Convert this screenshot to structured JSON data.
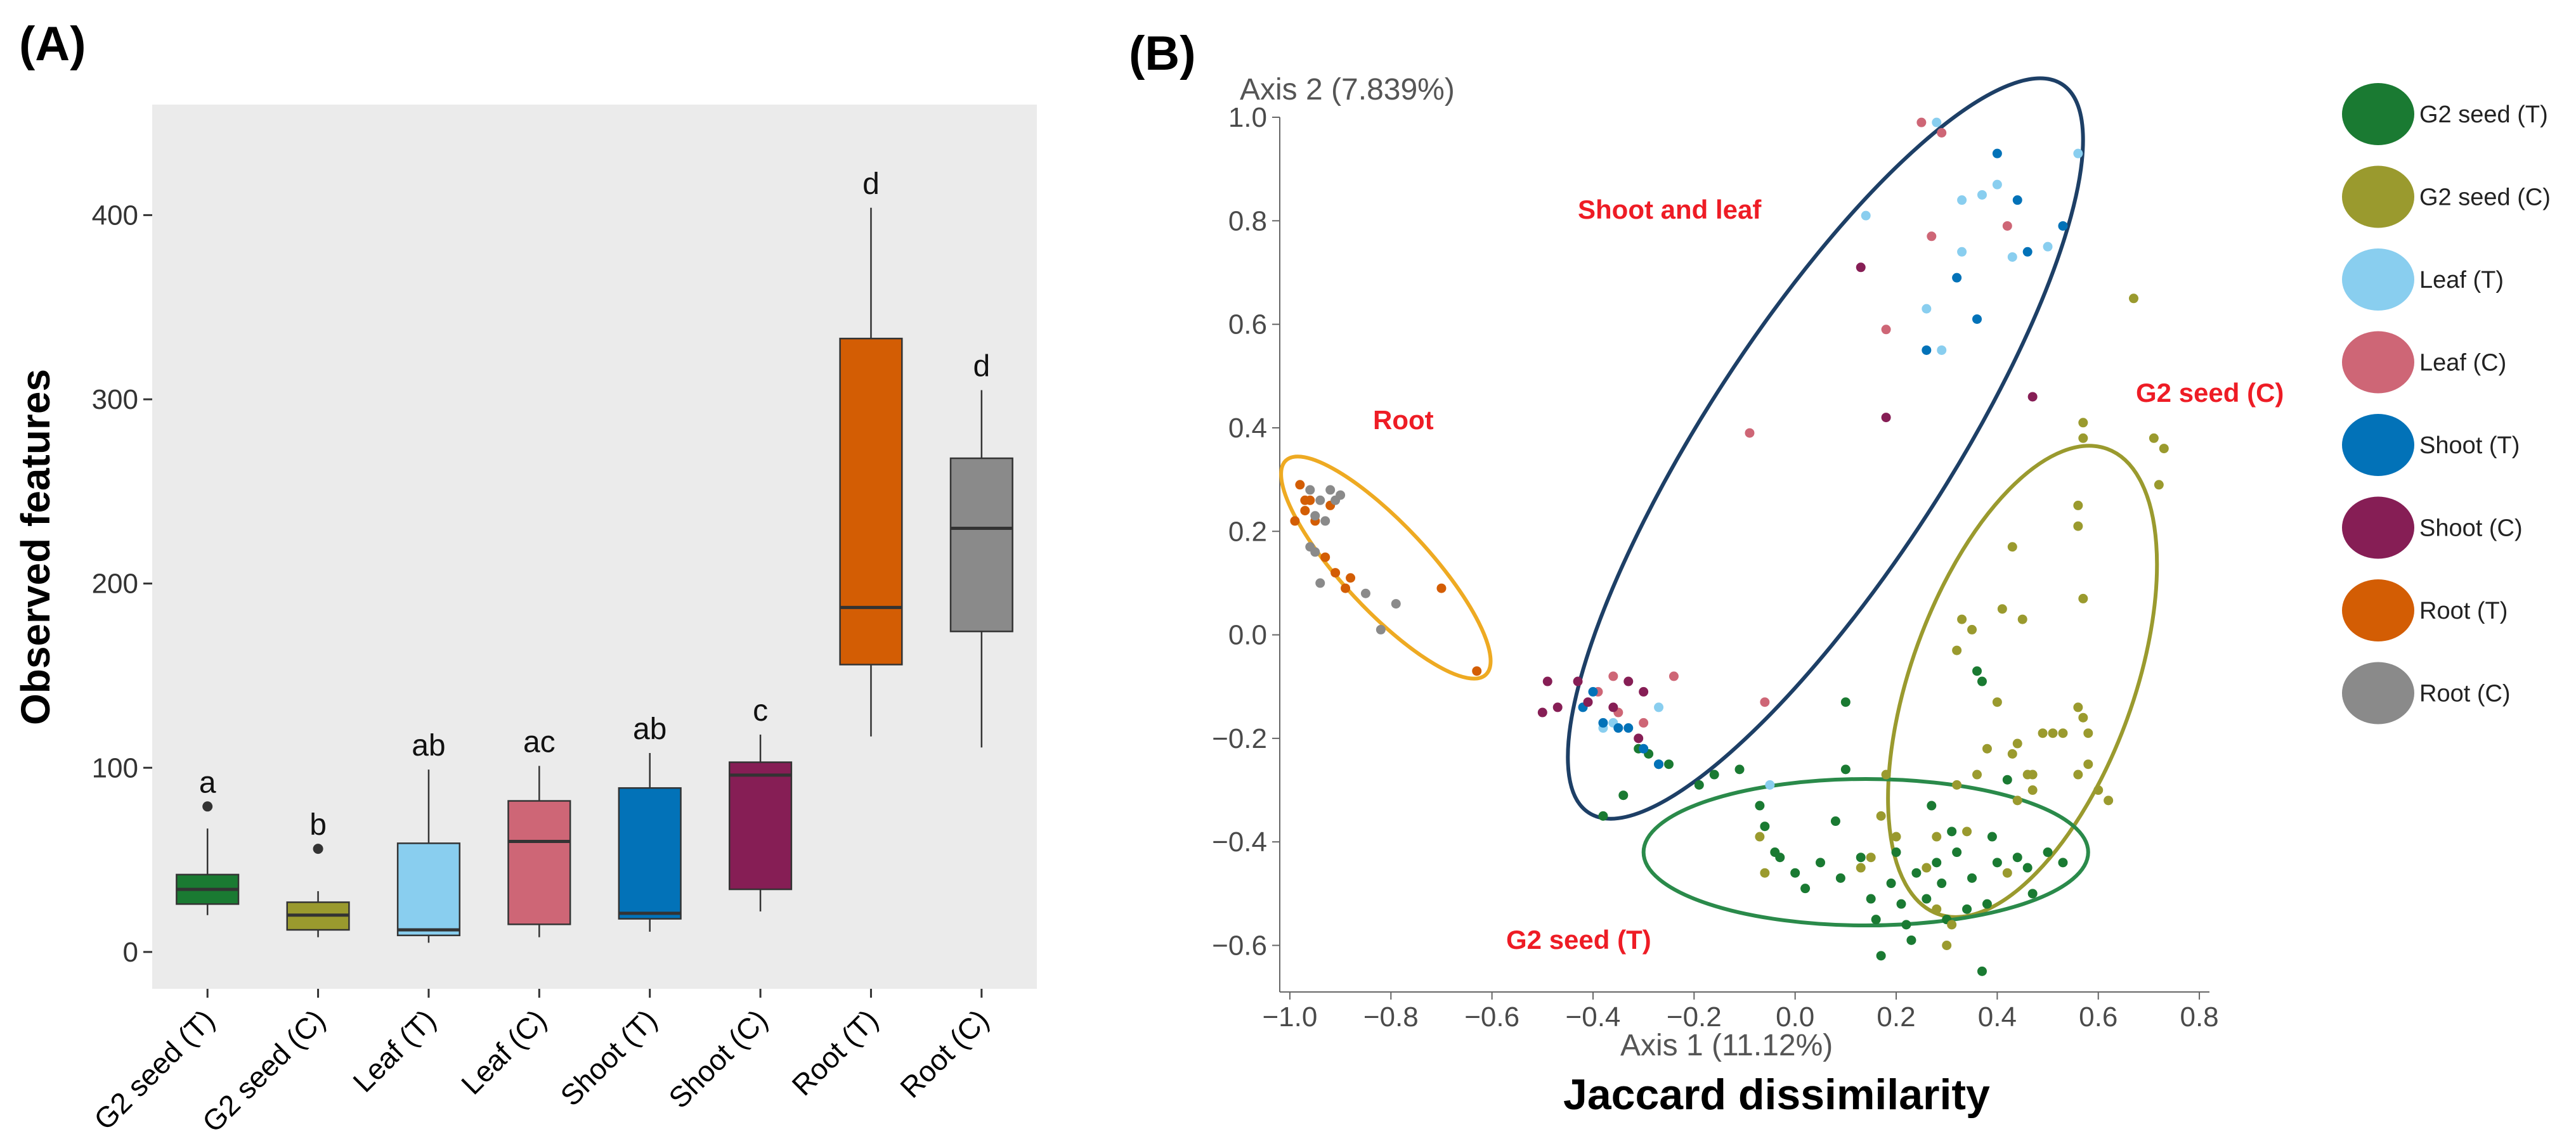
{
  "panel_a": {
    "label": "(A)",
    "chart_data": {
      "type": "box",
      "ylabel": "Observed features",
      "ylim": [
        -20,
        460
      ],
      "yticks": [
        0,
        100,
        200,
        300,
        400
      ],
      "grid": false,
      "boxes": [
        {
          "name": "G2 seed  (T)",
          "color": "#1a7a32",
          "whisker_low": 20,
          "q1": 26,
          "median": 34,
          "q3": 42,
          "whisker_high": 67,
          "outliers": [
            79
          ],
          "sig": "a"
        },
        {
          "name": "G2 seed (C)",
          "color": "#9a9a2e",
          "whisker_low": 8,
          "q1": 12,
          "median": 20,
          "q3": 27,
          "whisker_high": 33,
          "outliers": [
            56
          ],
          "sig": "b"
        },
        {
          "name": "Leaf  (T)",
          "color": "#89ceef",
          "whisker_low": 5,
          "q1": 9,
          "median": 12,
          "q3": 59,
          "whisker_high": 99,
          "outliers": [],
          "sig": "ab"
        },
        {
          "name": "Leaf (C)",
          "color": "#ce6676",
          "whisker_low": 8,
          "q1": 15,
          "median": 60,
          "q3": 82,
          "whisker_high": 101,
          "outliers": [],
          "sig": "ac"
        },
        {
          "name": "Shoot (T)",
          "color": "#0272b8",
          "whisker_low": 11,
          "q1": 18,
          "median": 21,
          "q3": 89,
          "whisker_high": 108,
          "outliers": [],
          "sig": "ab"
        },
        {
          "name": "Shoot (C)",
          "color": "#861e55",
          "whisker_low": 22,
          "q1": 34,
          "median": 96,
          "q3": 103,
          "whisker_high": 118,
          "outliers": [],
          "sig": "c"
        },
        {
          "name": "Root  (T)",
          "color": "#d35d04",
          "whisker_low": 117,
          "q1": 156,
          "median": 187,
          "q3": 333,
          "whisker_high": 404,
          "outliers": [],
          "sig": "d"
        },
        {
          "name": "Root (C)",
          "color": "#8a8a8a",
          "whisker_low": 111,
          "q1": 174,
          "median": 230,
          "q3": 268,
          "whisker_high": 305,
          "outliers": [],
          "sig": "d"
        }
      ]
    }
  },
  "panel_b": {
    "label": "(B)",
    "chart_data": {
      "type": "scatter",
      "title": "Jaccard dissimilarity",
      "xlabel": "Axis 1 (11.12%)",
      "ylabel": "Axis 2 (7.839%)",
      "xlim": [
        -1.02,
        0.82
      ],
      "ylim": [
        -0.69,
        1.0
      ],
      "xticks": [
        -1.0,
        -0.8,
        -0.6,
        -0.4,
        -0.2,
        0.0,
        0.2,
        0.4,
        0.6,
        0.8
      ],
      "xtick_labels": [
        "−1.0",
        "−0.8",
        "−0.6",
        "−0.4",
        "−0.2",
        "0.0",
        "0.2",
        "0.4",
        "0.6",
        "0.8"
      ],
      "yticks": [
        -0.6,
        -0.4,
        -0.2,
        0.0,
        0.2,
        0.4,
        0.6,
        0.8,
        1.0
      ],
      "ytick_labels": [
        "−0.6",
        "−0.4",
        "−0.2",
        "0.0",
        "0.2",
        "0.4",
        "0.6",
        "0.8",
        "1.0"
      ],
      "ellipses": [
        {
          "label": "Shoot and leaf",
          "color": "#1d3f66",
          "cx": 0.06,
          "cy": 0.36,
          "rx": 0.86,
          "ry": 0.24,
          "angle_deg": 57
        },
        {
          "label": "Root",
          "color": "#eeaa22",
          "cx": -0.81,
          "cy": 0.13,
          "rx": 0.29,
          "ry": 0.085,
          "angle_deg": -47
        },
        {
          "label": "G2 seed (C)",
          "color": "#9a9a2e",
          "cx": 0.45,
          "cy": -0.09,
          "rx": 0.49,
          "ry": 0.22,
          "angle_deg": 70
        },
        {
          "label": "G2 seed (T)",
          "color": "#2a8a4a",
          "cx": 0.14,
          "cy": -0.42,
          "rx": 0.44,
          "ry": 0.145,
          "angle_deg": 0
        }
      ],
      "series": [
        {
          "name": "G2 seed  (T)",
          "color": "#1a7a32",
          "points": [
            [
              -0.29,
              -0.23
            ],
            [
              -0.38,
              -0.35
            ],
            [
              -0.34,
              -0.31
            ],
            [
              -0.31,
              -0.22
            ],
            [
              -0.27,
              -0.25
            ],
            [
              -0.25,
              -0.25
            ],
            [
              -0.19,
              -0.29
            ],
            [
              -0.16,
              -0.27
            ],
            [
              -0.11,
              -0.26
            ],
            [
              -0.07,
              -0.33
            ],
            [
              -0.06,
              -0.37
            ],
            [
              -0.04,
              -0.42
            ],
            [
              -0.03,
              -0.43
            ],
            [
              0.0,
              -0.46
            ],
            [
              0.02,
              -0.49
            ],
            [
              0.05,
              -0.44
            ],
            [
              0.08,
              -0.36
            ],
            [
              0.09,
              -0.47
            ],
            [
              0.1,
              -0.26
            ],
            [
              0.13,
              -0.43
            ],
            [
              0.15,
              -0.51
            ],
            [
              0.16,
              -0.55
            ],
            [
              0.17,
              -0.62
            ],
            [
              0.19,
              -0.48
            ],
            [
              0.2,
              -0.42
            ],
            [
              0.21,
              -0.52
            ],
            [
              0.22,
              -0.56
            ],
            [
              0.23,
              -0.59
            ],
            [
              0.24,
              -0.46
            ],
            [
              0.26,
              -0.51
            ],
            [
              0.28,
              -0.44
            ],
            [
              0.29,
              -0.48
            ],
            [
              0.3,
              -0.55
            ],
            [
              0.31,
              -0.38
            ],
            [
              0.32,
              -0.42
            ],
            [
              0.34,
              -0.53
            ],
            [
              0.35,
              -0.47
            ],
            [
              0.37,
              -0.65
            ],
            [
              0.38,
              -0.52
            ],
            [
              0.39,
              -0.39
            ],
            [
              0.4,
              -0.44
            ],
            [
              0.42,
              -0.28
            ],
            [
              0.44,
              -0.43
            ],
            [
              0.46,
              -0.45
            ],
            [
              0.47,
              -0.5
            ],
            [
              0.5,
              -0.42
            ],
            [
              0.53,
              -0.44
            ],
            [
              0.37,
              -0.09
            ],
            [
              0.36,
              -0.07
            ],
            [
              0.1,
              -0.13
            ],
            [
              0.27,
              -0.33
            ]
          ]
        },
        {
          "name": "G2 seed (C)",
          "color": "#9a9a2e",
          "points": [
            [
              0.67,
              0.65
            ],
            [
              0.71,
              0.38
            ],
            [
              0.73,
              0.36
            ],
            [
              0.72,
              0.29
            ],
            [
              0.57,
              0.38
            ],
            [
              0.56,
              0.25
            ],
            [
              0.56,
              0.21
            ],
            [
              0.57,
              0.07
            ],
            [
              0.43,
              0.17
            ],
            [
              0.41,
              0.05
            ],
            [
              0.45,
              0.03
            ],
            [
              0.35,
              0.01
            ],
            [
              0.32,
              -0.03
            ],
            [
              0.33,
              0.03
            ],
            [
              0.4,
              -0.13
            ],
            [
              0.49,
              -0.19
            ],
            [
              0.51,
              -0.19
            ],
            [
              0.53,
              -0.19
            ],
            [
              0.56,
              -0.14
            ],
            [
              0.58,
              -0.19
            ],
            [
              0.58,
              -0.25
            ],
            [
              0.56,
              -0.27
            ],
            [
              0.6,
              -0.3
            ],
            [
              0.62,
              -0.32
            ],
            [
              0.38,
              -0.22
            ],
            [
              0.43,
              -0.23
            ],
            [
              0.46,
              -0.27
            ],
            [
              0.47,
              -0.27
            ],
            [
              0.44,
              -0.21
            ],
            [
              0.36,
              -0.27
            ],
            [
              0.32,
              -0.29
            ],
            [
              0.28,
              -0.39
            ],
            [
              0.26,
              -0.45
            ],
            [
              0.28,
              -0.53
            ],
            [
              0.31,
              -0.56
            ],
            [
              0.3,
              -0.6
            ],
            [
              0.34,
              -0.38
            ],
            [
              0.2,
              -0.39
            ],
            [
              0.17,
              -0.35
            ],
            [
              0.18,
              -0.27
            ],
            [
              0.15,
              -0.43
            ],
            [
              0.13,
              -0.45
            ],
            [
              0.42,
              -0.46
            ],
            [
              0.44,
              -0.32
            ],
            [
              0.47,
              -0.3
            ],
            [
              0.57,
              -0.16
            ],
            [
              -0.06,
              -0.46
            ],
            [
              -0.07,
              -0.39
            ],
            [
              0.57,
              0.41
            ]
          ]
        },
        {
          "name": "Leaf  (T)",
          "color": "#89ceef",
          "points": [
            [
              0.28,
              0.99
            ],
            [
              0.14,
              0.81
            ],
            [
              0.33,
              0.84
            ],
            [
              0.37,
              0.85
            ],
            [
              0.4,
              0.87
            ],
            [
              0.43,
              0.73
            ],
            [
              0.29,
              0.55
            ],
            [
              0.26,
              0.63
            ],
            [
              0.33,
              0.74
            ],
            [
              0.56,
              0.93
            ],
            [
              0.5,
              0.75
            ],
            [
              -0.38,
              -0.18
            ],
            [
              -0.36,
              -0.17
            ],
            [
              -0.27,
              -0.14
            ],
            [
              -0.05,
              -0.29
            ]
          ]
        },
        {
          "name": "Leaf (C)",
          "color": "#ce6676",
          "points": [
            [
              0.25,
              0.99
            ],
            [
              0.42,
              0.79
            ],
            [
              0.18,
              0.59
            ],
            [
              0.27,
              0.77
            ],
            [
              -0.09,
              0.39
            ],
            [
              -0.06,
              -0.13
            ],
            [
              -0.39,
              -0.11
            ],
            [
              -0.35,
              -0.15
            ],
            [
              -0.24,
              -0.08
            ],
            [
              -0.3,
              -0.17
            ],
            [
              -0.36,
              -0.08
            ],
            [
              0.29,
              0.97
            ]
          ]
        },
        {
          "name": "Shoot (T)",
          "color": "#0272b8",
          "points": [
            [
              0.4,
              0.93
            ],
            [
              0.32,
              0.69
            ],
            [
              0.26,
              0.55
            ],
            [
              0.46,
              0.74
            ],
            [
              0.53,
              0.79
            ],
            [
              0.36,
              0.61
            ],
            [
              0.44,
              0.84
            ],
            [
              -0.4,
              -0.11
            ],
            [
              -0.38,
              -0.17
            ],
            [
              -0.35,
              -0.18
            ],
            [
              -0.33,
              -0.18
            ],
            [
              -0.42,
              -0.14
            ],
            [
              -0.27,
              -0.25
            ],
            [
              -0.3,
              -0.22
            ]
          ]
        },
        {
          "name": "Shoot (C)",
          "color": "#861e55",
          "points": [
            [
              0.13,
              0.71
            ],
            [
              0.47,
              0.46
            ],
            [
              0.18,
              0.42
            ],
            [
              -0.49,
              -0.09
            ],
            [
              -0.43,
              -0.09
            ],
            [
              -0.5,
              -0.15
            ],
            [
              -0.47,
              -0.14
            ],
            [
              -0.41,
              -0.13
            ],
            [
              -0.33,
              -0.09
            ],
            [
              -0.3,
              -0.11
            ],
            [
              -0.36,
              -0.14
            ],
            [
              -0.31,
              -0.2
            ]
          ]
        },
        {
          "name": "Root  (T)",
          "color": "#d35d04",
          "points": [
            [
              -0.98,
              0.29
            ],
            [
              -0.96,
              0.26
            ],
            [
              -0.97,
              0.24
            ],
            [
              -0.99,
              0.22
            ],
            [
              -0.95,
              0.22
            ],
            [
              -0.92,
              0.25
            ],
            [
              -0.93,
              0.15
            ],
            [
              -0.91,
              0.12
            ],
            [
              -0.89,
              0.09
            ],
            [
              -0.88,
              0.11
            ],
            [
              -0.7,
              0.09
            ],
            [
              -0.63,
              -0.07
            ],
            [
              -0.97,
              0.26
            ]
          ]
        },
        {
          "name": "Root (C)",
          "color": "#8a8a8a",
          "points": [
            [
              -0.96,
              0.28
            ],
            [
              -0.94,
              0.26
            ],
            [
              -0.92,
              0.28
            ],
            [
              -0.91,
              0.26
            ],
            [
              -0.95,
              0.23
            ],
            [
              -0.93,
              0.22
            ],
            [
              -0.96,
              0.17
            ],
            [
              -0.95,
              0.16
            ],
            [
              -0.94,
              0.1
            ],
            [
              -0.85,
              0.08
            ],
            [
              -0.82,
              0.01
            ],
            [
              -0.79,
              0.06
            ],
            [
              -0.9,
              0.27
            ]
          ]
        }
      ],
      "group_labels": [
        {
          "text": "Shoot and leaf"
        },
        {
          "text": "Root"
        },
        {
          "text": "G2 seed (C)"
        },
        {
          "text": "G2 seed (T)"
        }
      ]
    }
  },
  "legend": {
    "items": [
      {
        "name": "G2 seed  (T)",
        "color": "#1a7a32"
      },
      {
        "name": "G2 seed (C)",
        "color": "#9a9a2e"
      },
      {
        "name": "Leaf  (T)",
        "color": "#89ceef"
      },
      {
        "name": "Leaf (C)",
        "color": "#ce6676"
      },
      {
        "name": "Shoot (T)",
        "color": "#0272b8"
      },
      {
        "name": "Shoot (C)",
        "color": "#861e55"
      },
      {
        "name": "Root  (T)",
        "color": "#d35d04"
      },
      {
        "name": "Root (C)",
        "color": "#8a8a8a"
      }
    ]
  }
}
